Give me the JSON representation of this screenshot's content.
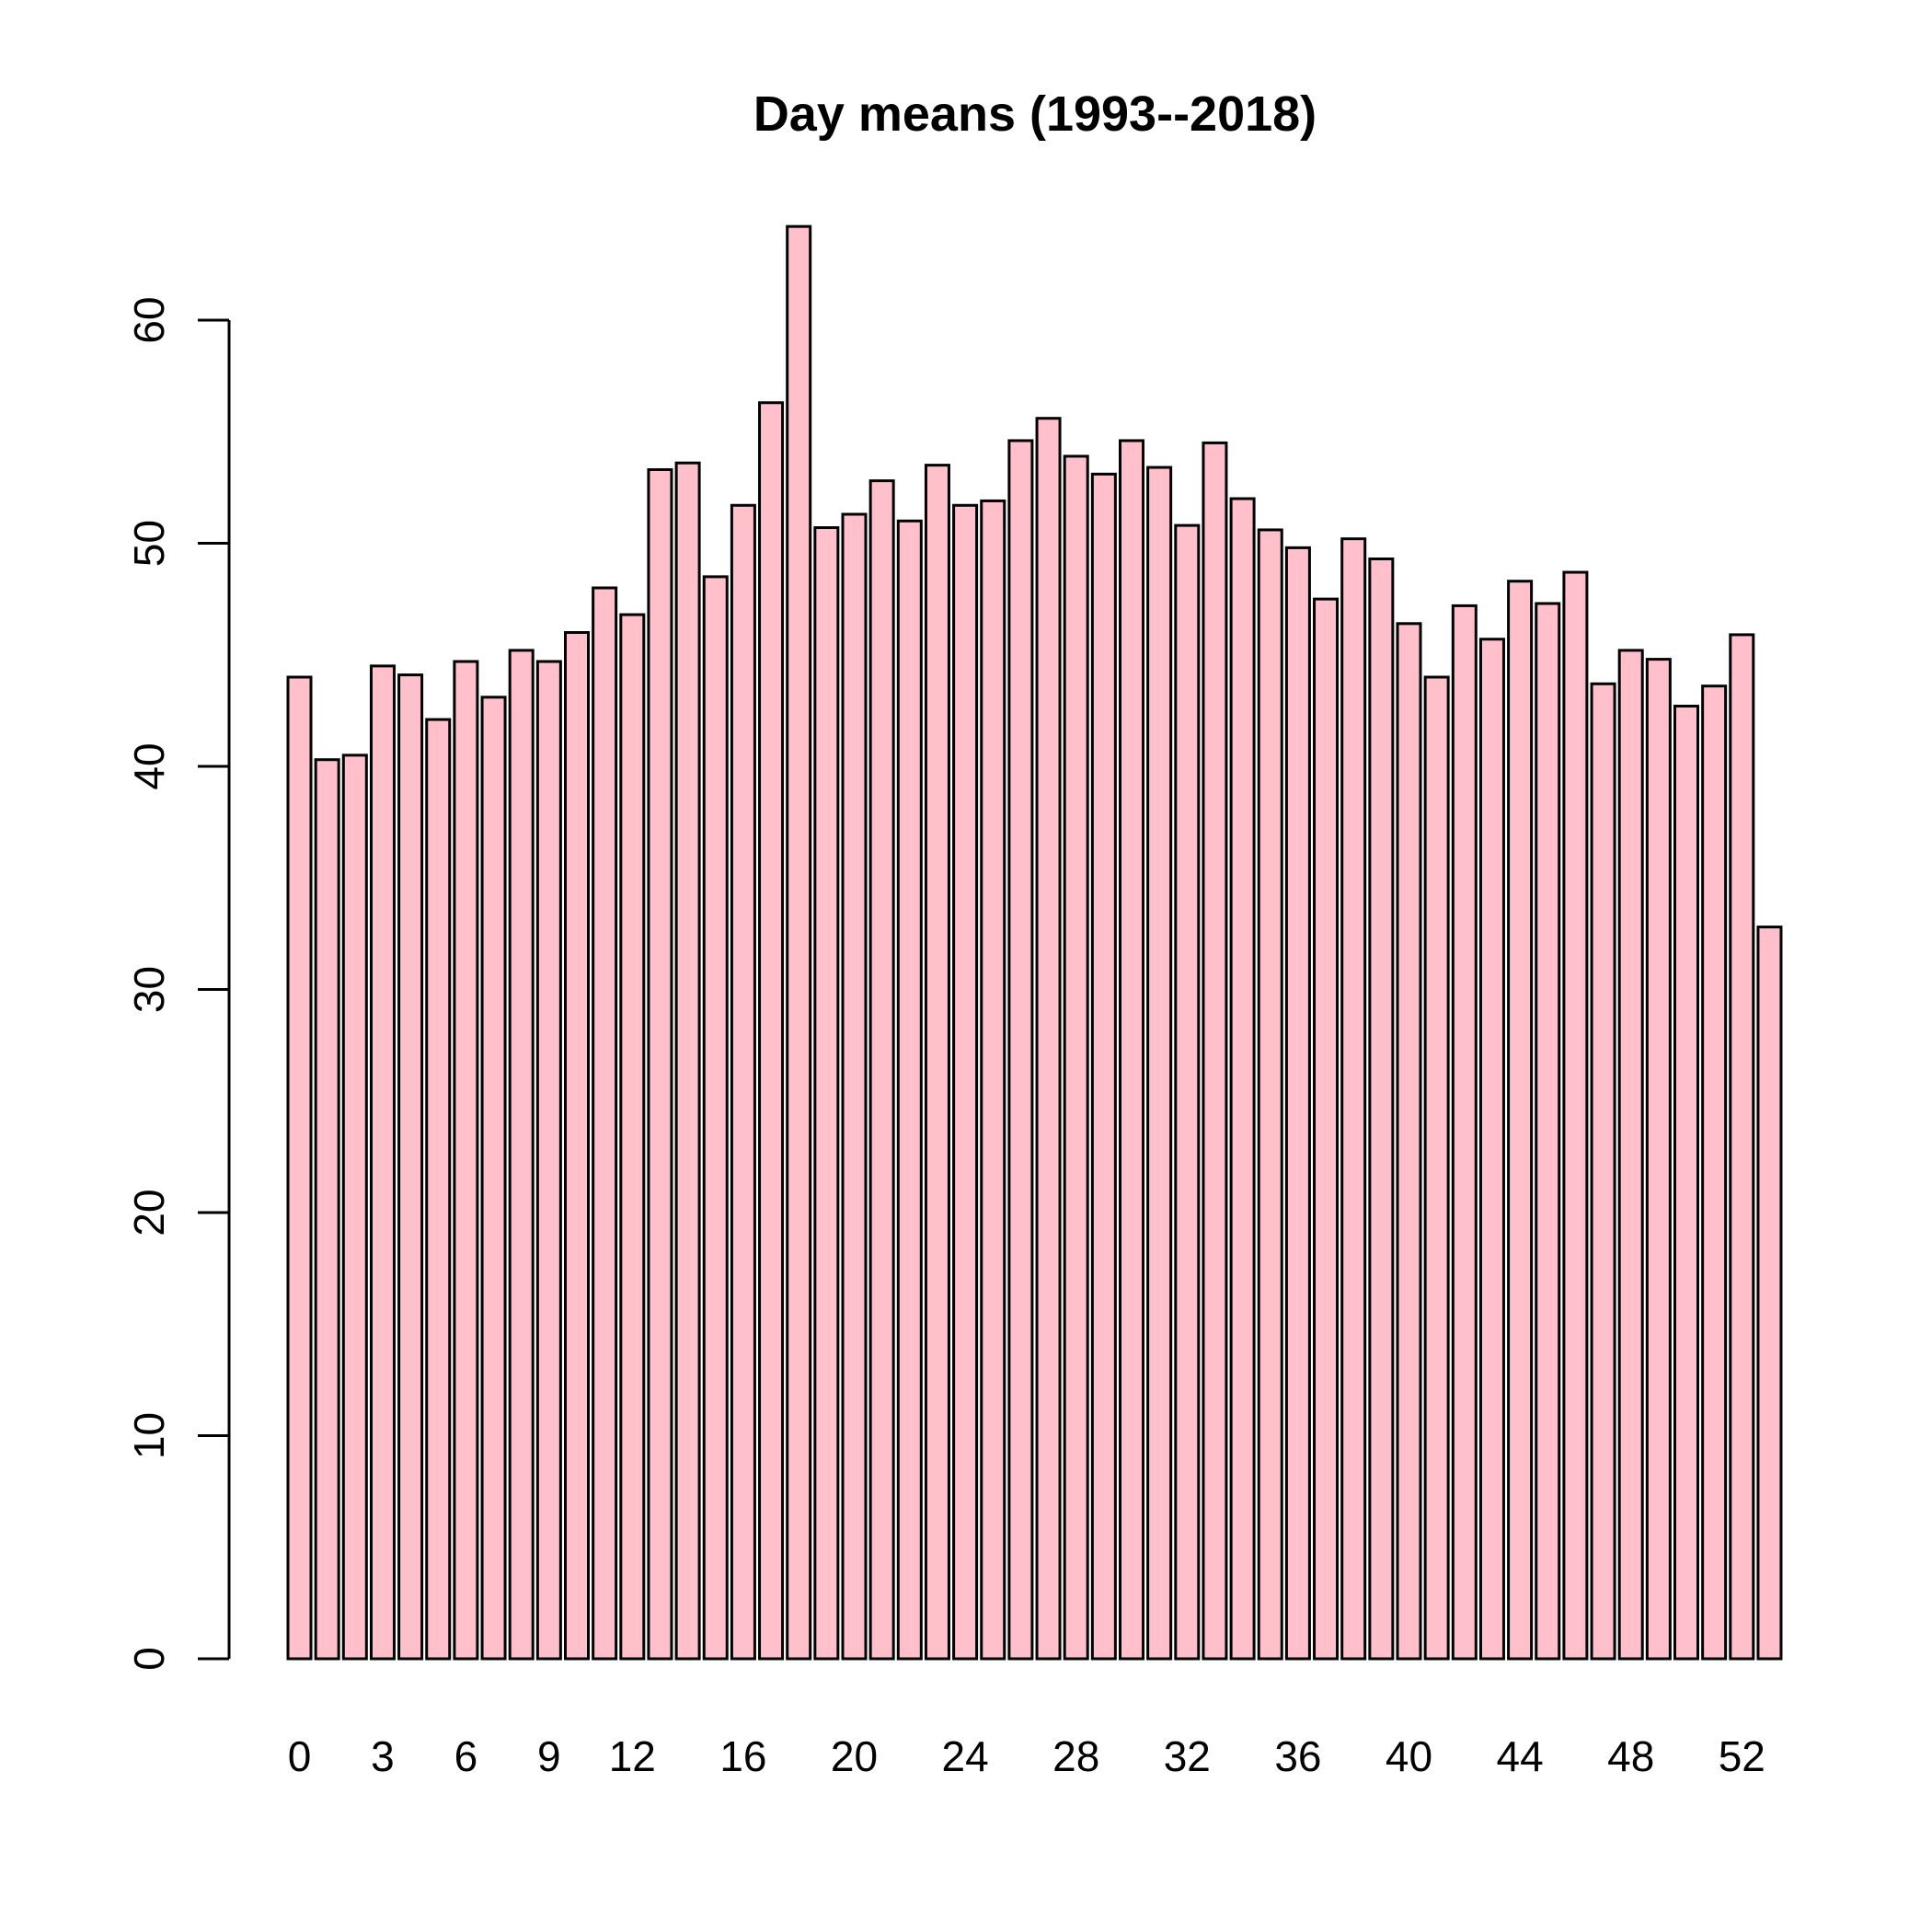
{
  "chart_data": {
    "type": "bar",
    "title": "Day means (1993--2018)",
    "xlabel": "",
    "ylabel": "",
    "ylim": [
      0,
      65
    ],
    "grid": false,
    "bar_color": "#FFC0CB",
    "border_color": "#000000",
    "y_ticks": [
      0,
      10,
      20,
      30,
      40,
      50,
      60
    ],
    "x_tick_labels": [
      {
        "index": 0,
        "label": "0"
      },
      {
        "index": 3,
        "label": "3"
      },
      {
        "index": 6,
        "label": "6"
      },
      {
        "index": 9,
        "label": "9"
      },
      {
        "index": 12,
        "label": "12"
      },
      {
        "index": 16,
        "label": "16"
      },
      {
        "index": 20,
        "label": "20"
      },
      {
        "index": 24,
        "label": "24"
      },
      {
        "index": 28,
        "label": "28"
      },
      {
        "index": 32,
        "label": "32"
      },
      {
        "index": 36,
        "label": "36"
      },
      {
        "index": 40,
        "label": "40"
      },
      {
        "index": 44,
        "label": "44"
      },
      {
        "index": 48,
        "label": "48"
      },
      {
        "index": 52,
        "label": "52"
      }
    ],
    "categories": [
      0,
      1,
      2,
      3,
      4,
      5,
      6,
      7,
      8,
      9,
      10,
      11,
      12,
      13,
      14,
      15,
      16,
      17,
      18,
      19,
      20,
      21,
      22,
      23,
      24,
      25,
      26,
      27,
      28,
      29,
      30,
      31,
      32,
      33,
      34,
      35,
      36,
      37,
      38,
      39,
      40,
      41,
      42,
      43,
      44,
      45,
      46,
      47,
      48,
      49,
      50,
      51,
      52,
      53
    ],
    "values": [
      44.0,
      40.3,
      40.5,
      44.5,
      44.1,
      42.1,
      44.7,
      43.1,
      45.2,
      44.7,
      46.0,
      48.0,
      46.8,
      53.3,
      53.6,
      48.5,
      51.7,
      56.3,
      64.2,
      50.7,
      51.3,
      52.8,
      51.0,
      53.5,
      51.7,
      51.9,
      54.6,
      55.6,
      53.9,
      53.1,
      54.6,
      53.4,
      50.8,
      54.5,
      52.0,
      50.6,
      49.8,
      47.5,
      50.2,
      49.3,
      46.4,
      44.0,
      47.2,
      45.7,
      48.3,
      47.3,
      48.7,
      43.7,
      45.2,
      44.8,
      42.7,
      43.6,
      45.9,
      32.8
    ]
  }
}
